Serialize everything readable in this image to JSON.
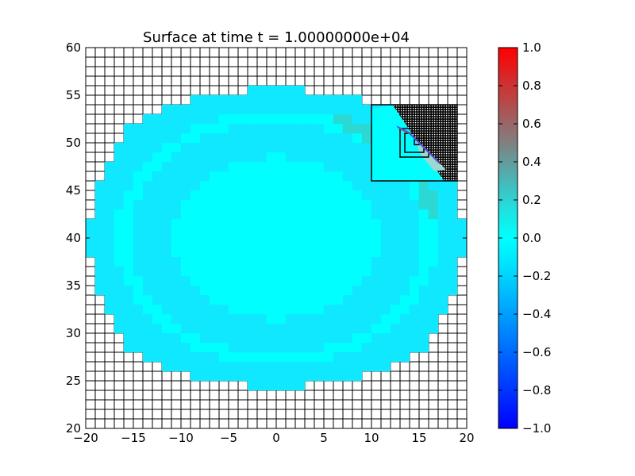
{
  "chart_data": [
    {
      "type": "heatmap",
      "title": "Surface at time t = 1.00000000e+04",
      "xlabel": "",
      "ylabel": "",
      "xlim": [
        -20,
        20
      ],
      "ylim": [
        20,
        60
      ],
      "xticks": [
        "−20",
        "−15",
        "−10",
        "−5",
        "0",
        "5",
        "10",
        "15",
        "20"
      ],
      "yticks": [
        "20",
        "25",
        "30",
        "35",
        "40",
        "45",
        "50",
        "55",
        "60"
      ],
      "xtick_values": [
        -20,
        -15,
        -10,
        -5,
        0,
        5,
        10,
        15,
        20
      ],
      "ytick_values": [
        20,
        25,
        30,
        35,
        40,
        45,
        50,
        55,
        60
      ],
      "grid": true,
      "coarse_cell_size": 1,
      "domain": {
        "description": "approximately circular water region",
        "center": [
          0,
          40
        ],
        "x_extent": [
          -19,
          19
        ],
        "y_extent": [
          25,
          55
        ]
      },
      "background_value": 0.0,
      "background_color": "#00ffff",
      "surface_colors": {
        "zero": "#00ffff",
        "slightly_negative": "#10e8ff",
        "slightly_positive": "#2cd8d4"
      },
      "refinement_patches": [
        {
          "level": 2,
          "x": [
            10,
            19
          ],
          "y": [
            46,
            54
          ]
        },
        {
          "level": 3,
          "x": [
            13,
            16
          ],
          "y": [
            48.5,
            51.5
          ]
        },
        {
          "level": 4,
          "x": [
            13.5,
            15.5
          ],
          "y": [
            49,
            51
          ]
        },
        {
          "level": 5,
          "x": [
            14.5,
            15
          ],
          "y": [
            49.8,
            50.3
          ]
        }
      ],
      "wave_front": {
        "description": "thin colored front along the circle edge in refined area",
        "points": [
          [
            12.8,
            51.6
          ],
          [
            14,
            51
          ],
          [
            15,
            50
          ],
          [
            16,
            49
          ],
          [
            17.2,
            47.8
          ]
        ],
        "colors": [
          "#3a5bff",
          "#d43a3a"
        ]
      }
    },
    {
      "type": "heatmap",
      "title": "",
      "colorbar": true,
      "vmin": -1.0,
      "vmax": 1.0,
      "ticks": [
        "−1.0",
        "−0.8",
        "−0.6",
        "−0.4",
        "−0.2",
        "0.0",
        "0.2",
        "0.4",
        "0.6",
        "0.8",
        "1.0"
      ],
      "tick_values": [
        -1.0,
        -0.8,
        -0.6,
        -0.4,
        -0.2,
        0.0,
        0.2,
        0.4,
        0.6,
        0.8,
        1.0
      ],
      "colormap": [
        {
          "value": -1.0,
          "color": "#0000ff"
        },
        {
          "value": -0.15,
          "color": "#00e0ff"
        },
        {
          "value": 0.0,
          "color": "#00ffff"
        },
        {
          "value": 0.15,
          "color": "#20e0e0"
        },
        {
          "value": 0.5,
          "color": "#808080"
        },
        {
          "value": 1.0,
          "color": "#ff0000"
        }
      ]
    }
  ]
}
